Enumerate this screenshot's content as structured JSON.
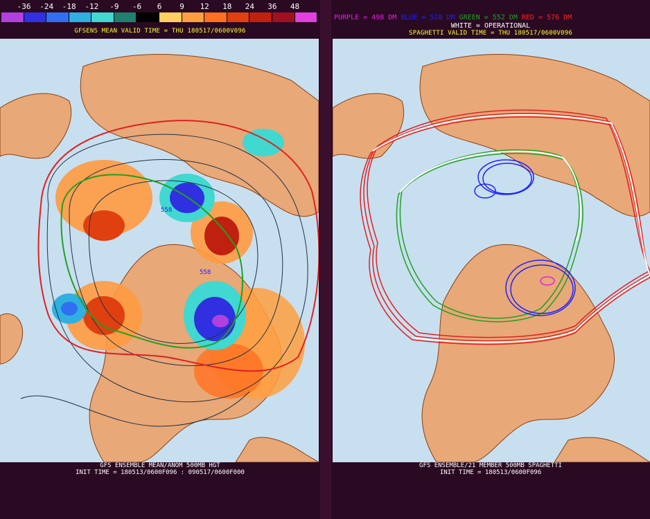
{
  "left": {
    "colorbar": {
      "labels": [
        "-36",
        "-24",
        "-18",
        "-12",
        "-9",
        "-6",
        "6",
        "9",
        "12",
        "18",
        "24",
        "36",
        "48"
      ],
      "colors": [
        "#b040e0",
        "#3030e0",
        "#3070f0",
        "#30b0e0",
        "#40d8d0",
        "#208070",
        "#000000",
        "#ffd060",
        "#ffa040",
        "#ff7020",
        "#e04010",
        "#c02010",
        "#a01020",
        "#e040e0"
      ]
    },
    "title": "GFSENS MEAN VALID TIME = THU 180517/0600V096",
    "contour_labels": [
      "558",
      "558"
    ],
    "footer": {
      "line1": "GFS ENSEMBLE MEAN/ANOM 500MB HGT",
      "line2": "INIT TIME = 180513/0600F096 : 090517/0600F000"
    }
  },
  "right": {
    "legend": [
      {
        "text": "PURPLE = 498 DM",
        "color": "#e020e0"
      },
      {
        "text": "BLUE = 528 DM",
        "color": "#2020ff"
      },
      {
        "text": "GREEN = 552 DM",
        "color": "#20a020"
      },
      {
        "text": "RED = 576 DM",
        "color": "#ff2020"
      }
    ],
    "operational": "WHITE = OPERATIONAL",
    "title": "SPAGHETTI VALID TIME = THU 180517/0600V096",
    "footer": {
      "line1": "GFS ENSEMBLE/21 MEMBER 500MB SPAGHETTI",
      "line2": "INIT TIME = 180513/0600F096"
    }
  },
  "colors": {
    "ocean": "#c8dff0",
    "land": "#e8a878",
    "coast": "#8a4010",
    "background": "#2a0a22"
  }
}
